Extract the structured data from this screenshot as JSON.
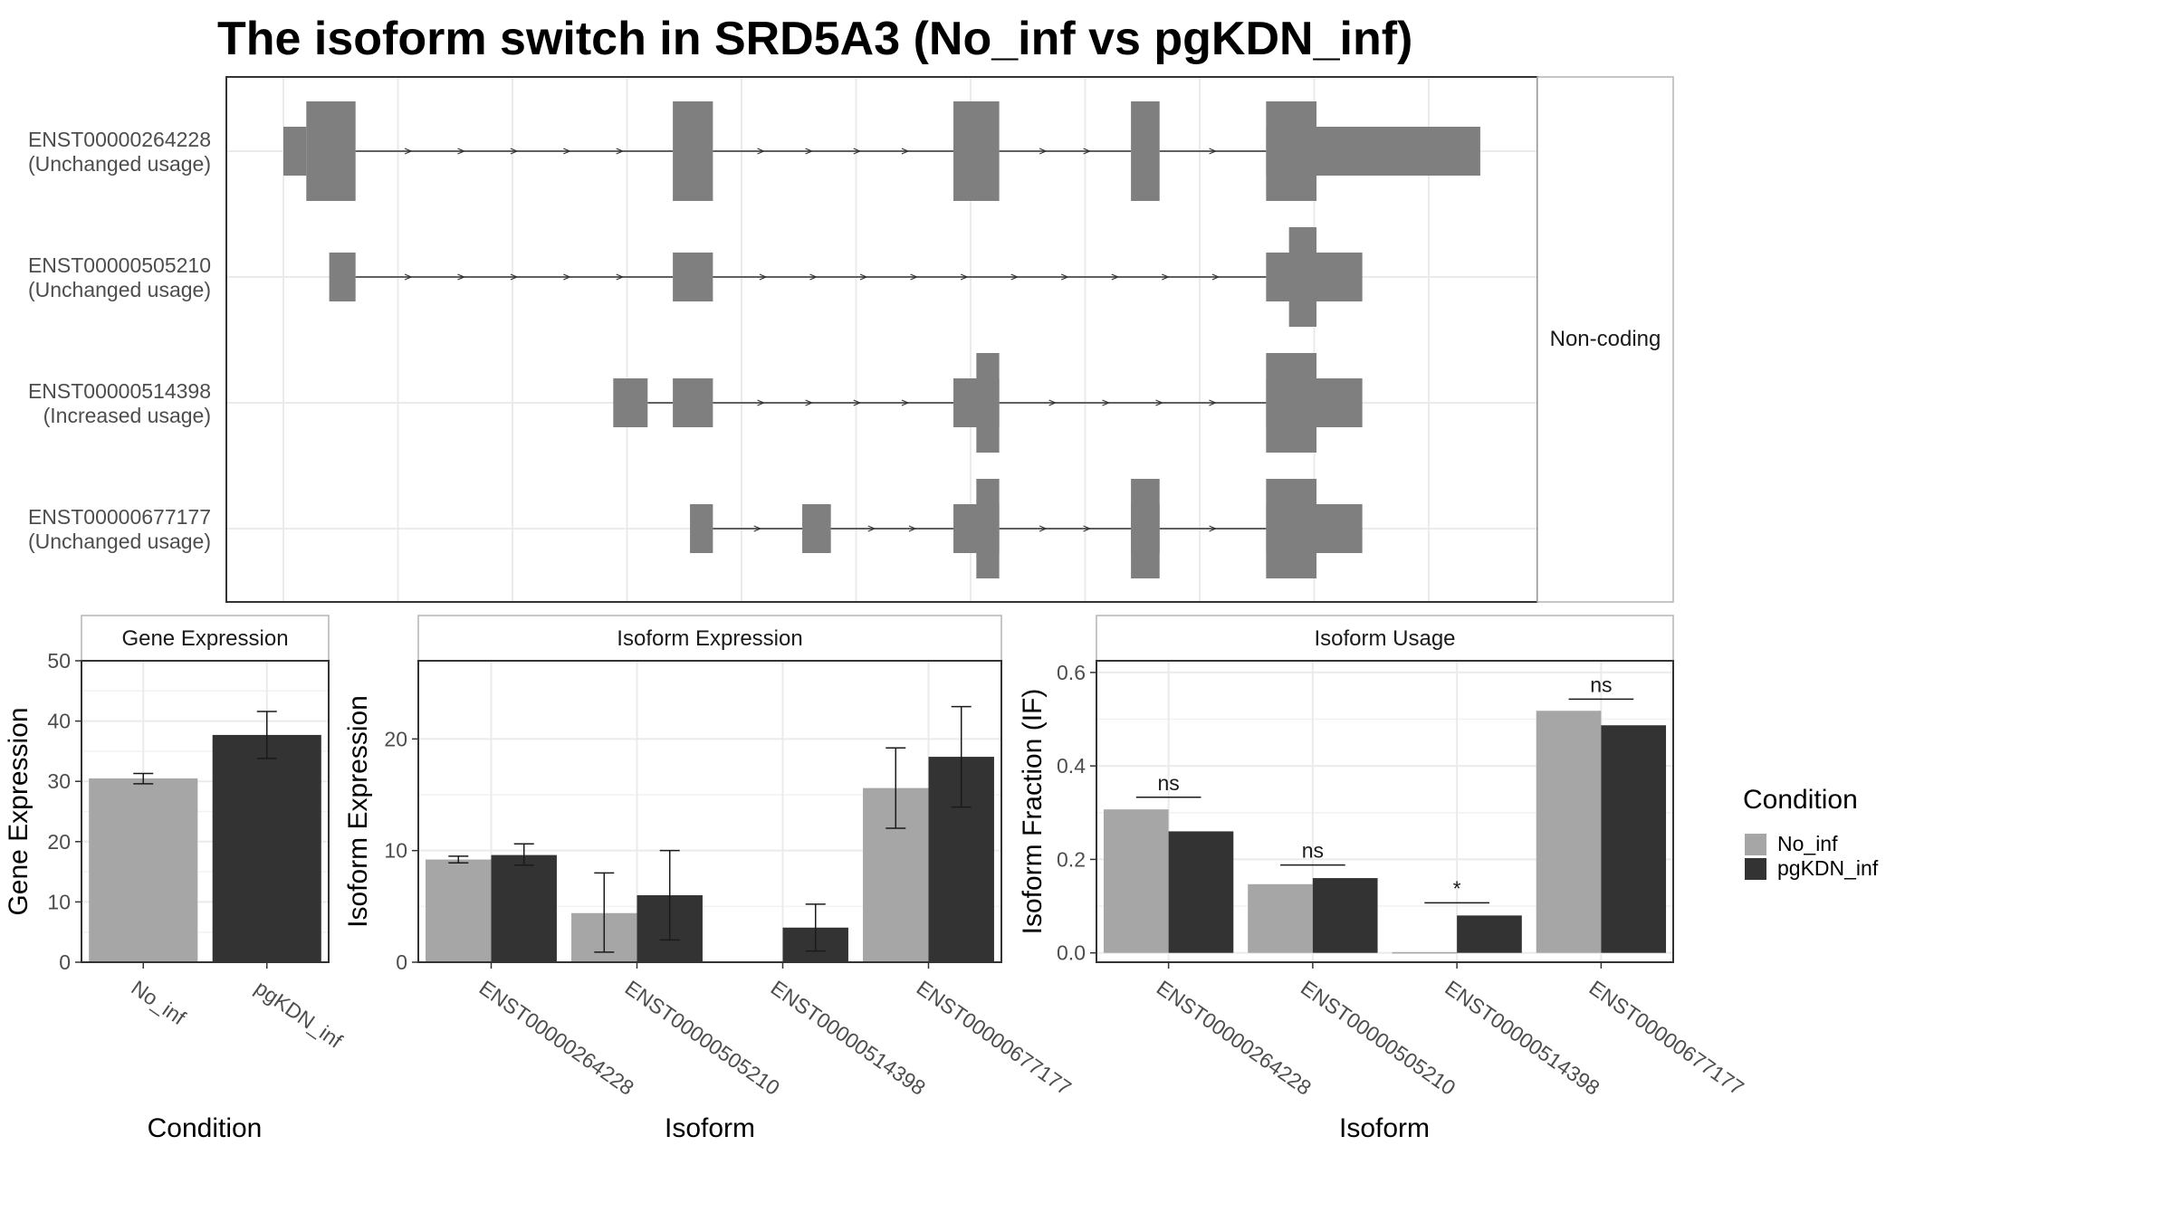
{
  "title": "The isoform switch in SRD5A3 (No_inf vs pgKDN_inf)",
  "colors": {
    "exon": "#7f7f7f",
    "intron": "#333333",
    "No_inf": "#a6a6a6",
    "pgKDN_inf": "#333333",
    "grid": "#ebebeb",
    "border": "#333333",
    "strip_border": "#b3b3b3"
  },
  "structure": {
    "strip_label": "Non-coding",
    "x_range": [
      0,
      1000
    ],
    "grid_x": [
      0,
      100,
      200,
      300,
      400,
      500,
      600,
      700,
      800,
      900,
      1000
    ],
    "transcripts": [
      {
        "name": "ENST00000264228",
        "status": "(Unchanged usage)",
        "utr": [
          [
            0,
            20
          ],
          [
            858,
            1045
          ]
        ],
        "cds": [
          [
            20,
            63
          ],
          [
            340,
            375
          ],
          [
            585,
            625
          ],
          [
            740,
            765
          ],
          [
            858,
            902
          ]
        ],
        "introns": [
          [
            63,
            340
          ],
          [
            375,
            585
          ],
          [
            625,
            740
          ],
          [
            765,
            858
          ]
        ]
      },
      {
        "name": "ENST00000505210",
        "status": "(Unchanged usage)",
        "utr": [
          [
            40,
            63
          ],
          [
            340,
            375
          ],
          [
            858,
            942
          ]
        ],
        "cds": [
          [
            878,
            902
          ]
        ],
        "introns": [
          [
            63,
            340
          ],
          [
            375,
            858
          ]
        ]
      },
      {
        "name": "ENST00000514398",
        "status": "(Increased usage)",
        "utr": [
          [
            288,
            318
          ],
          [
            340,
            375
          ],
          [
            585,
            625
          ],
          [
            858,
            942
          ]
        ],
        "cds": [
          [
            605,
            625
          ],
          [
            858,
            902
          ]
        ],
        "introns": [
          [
            318,
            340
          ],
          [
            375,
            585
          ],
          [
            625,
            858
          ]
        ]
      },
      {
        "name": "ENST00000677177",
        "status": "(Unchanged usage)",
        "utr": [
          [
            355,
            375
          ],
          [
            453,
            478
          ],
          [
            585,
            625
          ],
          [
            740,
            765
          ],
          [
            858,
            942
          ]
        ],
        "cds": [
          [
            605,
            625
          ],
          [
            740,
            765
          ],
          [
            858,
            902
          ]
        ],
        "introns": [
          [
            375,
            453
          ],
          [
            478,
            585
          ],
          [
            625,
            740
          ],
          [
            765,
            858
          ]
        ]
      }
    ]
  },
  "chart_data": [
    {
      "type": "bar",
      "strip": "Gene Expression",
      "xlabel": "Condition",
      "ylabel": "Gene Expression",
      "categories": [
        "No_inf",
        "pgKDN_inf"
      ],
      "values": [
        30.5,
        37.7
      ],
      "error_low": [
        29.6,
        33.8
      ],
      "error_high": [
        31.3,
        41.6
      ],
      "ylim": [
        0,
        50
      ],
      "yticks": [
        0,
        10,
        20,
        30,
        40,
        50
      ],
      "grid": true
    },
    {
      "type": "bar",
      "strip": "Isoform Expression",
      "xlabel": "Isoform",
      "ylabel": "Isoform Expression",
      "categories": [
        "ENST00000264228",
        "ENST00000505210",
        "ENST00000514398",
        "ENST00000677177"
      ],
      "series": [
        {
          "name": "No_inf",
          "values": [
            9.2,
            4.4,
            0.0,
            15.6
          ],
          "error_low": [
            8.9,
            0.9,
            0.0,
            12.0
          ],
          "error_high": [
            9.5,
            8.0,
            0.0,
            19.2
          ]
        },
        {
          "name": "pgKDN_inf",
          "values": [
            9.6,
            6.0,
            3.1,
            18.4
          ],
          "error_low": [
            8.7,
            2.0,
            1.0,
            13.9
          ],
          "error_high": [
            10.6,
            10.0,
            5.2,
            22.9
          ]
        }
      ],
      "ylim": [
        0,
        27
      ],
      "yticks": [
        0,
        10,
        20
      ],
      "grid": true
    },
    {
      "type": "bar",
      "strip": "Isoform Usage",
      "xlabel": "Isoform",
      "ylabel": "Isoform Fraction (IF)",
      "categories": [
        "ENST00000264228",
        "ENST00000505210",
        "ENST00000514398",
        "ENST00000677177"
      ],
      "series": [
        {
          "name": "No_inf",
          "values": [
            0.307,
            0.147,
            0.0,
            0.518
          ]
        },
        {
          "name": "pgKDN_inf",
          "values": [
            0.26,
            0.16,
            0.08,
            0.487
          ]
        }
      ],
      "significance": [
        "ns",
        "ns",
        "*",
        "ns"
      ],
      "significance_y": [
        0.333,
        0.188,
        0.107,
        0.543
      ],
      "ylim": [
        -0.02,
        0.625
      ],
      "yticks": [
        0.0,
        0.2,
        0.4,
        0.6
      ],
      "yticklabels": [
        "0.0",
        "0.2",
        "0.4",
        "0.6"
      ],
      "grid": true
    }
  ],
  "legend": {
    "title": "Condition",
    "items": [
      {
        "label": "No_inf",
        "color": "#a6a6a6"
      },
      {
        "label": "pgKDN_inf",
        "color": "#333333"
      }
    ]
  }
}
